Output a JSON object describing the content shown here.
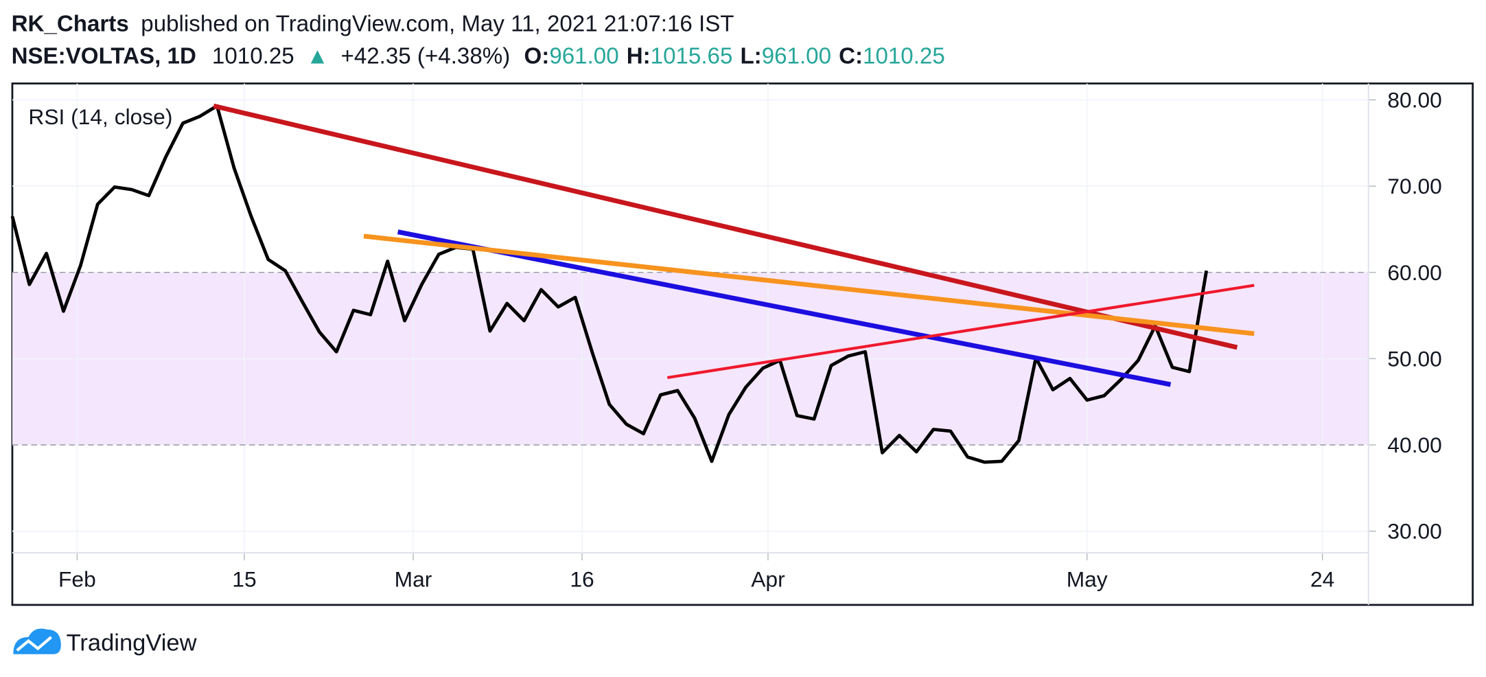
{
  "header": {
    "author": "RK_Charts",
    "published": "published on TradingView.com, May 11, 2021 21:07:16 IST",
    "symbol": "NSE:VOLTAS, 1D",
    "last": "1010.25",
    "change": "+42.35 (+4.38%)",
    "ohlc": [
      {
        "label": "O:",
        "value": "961.00"
      },
      {
        "label": "H:",
        "value": "1015.65"
      },
      {
        "label": "L:",
        "value": "961.00"
      },
      {
        "label": "C:",
        "value": "1010.25"
      }
    ]
  },
  "chart_data": {
    "type": "line",
    "title": "RSI (14, close)",
    "color": "#000000",
    "values": [
      66.5,
      58.6,
      62.2,
      55.5,
      60.8,
      67.9,
      69.9,
      69.6,
      68.9,
      73.4,
      77.3,
      78.1,
      79.3,
      72.1,
      66.5,
      61.5,
      60.2,
      56.6,
      53.1,
      50.8,
      55.6,
      55.1,
      61.3,
      54.4,
      58.6,
      62.1,
      62.9,
      62.7,
      53.2,
      56.4,
      54.4,
      58.0,
      56.0,
      57.1,
      50.7,
      44.7,
      42.4,
      41.3,
      45.8,
      46.3,
      43.1,
      38.1,
      43.5,
      46.7,
      48.9,
      49.8,
      43.4,
      43.0,
      49.2,
      50.3,
      50.8,
      39.1,
      41.1,
      39.2,
      41.8,
      41.6,
      38.6,
      38.0,
      38.1,
      40.5,
      50.1,
      46.4,
      47.7,
      45.2,
      45.7,
      47.6,
      49.8,
      53.8,
      49.0,
      48.5,
      60.2
    ],
    "xlim": [
      0,
      79.5
    ],
    "xticks": [
      {
        "value": 3.8,
        "label": "Feb"
      },
      {
        "value": 13.6,
        "label": "15"
      },
      {
        "value": 23.5,
        "label": "Mar"
      },
      {
        "value": 33.4,
        "label": "16"
      },
      {
        "value": 44.3,
        "label": "Apr"
      },
      {
        "value": 63,
        "label": "May"
      },
      {
        "value": 76.8,
        "label": "24"
      }
    ],
    "ylim": [
      27.5,
      81.9
    ],
    "yticks": [
      {
        "value": 30,
        "label": "30.00"
      },
      {
        "value": 40,
        "label": "40.00"
      },
      {
        "value": 50,
        "label": "50.00"
      },
      {
        "value": 60,
        "label": "60.00"
      },
      {
        "value": 70,
        "label": "70.00"
      },
      {
        "value": 80,
        "label": "80.00"
      }
    ],
    "grid": true,
    "band": {
      "from": 40,
      "to": 60,
      "color": "#f4e6fd"
    },
    "trendlines": [
      {
        "color": "#c8161d",
        "width": 5,
        "points": [
          [
            11.8,
            79.3
          ],
          [
            71.8,
            51.3
          ]
        ]
      },
      {
        "color": "#1d0ee0",
        "width": 5,
        "points": [
          [
            22.6,
            64.7
          ],
          [
            67.9,
            47.0
          ]
        ]
      },
      {
        "color": "#f7931e",
        "width": 5,
        "points": [
          [
            20.6,
            64.2
          ],
          [
            72.8,
            52.9
          ]
        ]
      },
      {
        "color": "#f0182c",
        "width": 3,
        "points": [
          [
            38.4,
            47.8
          ],
          [
            72.8,
            58.5
          ]
        ]
      }
    ]
  },
  "footer": {
    "brand": "TradingView"
  }
}
